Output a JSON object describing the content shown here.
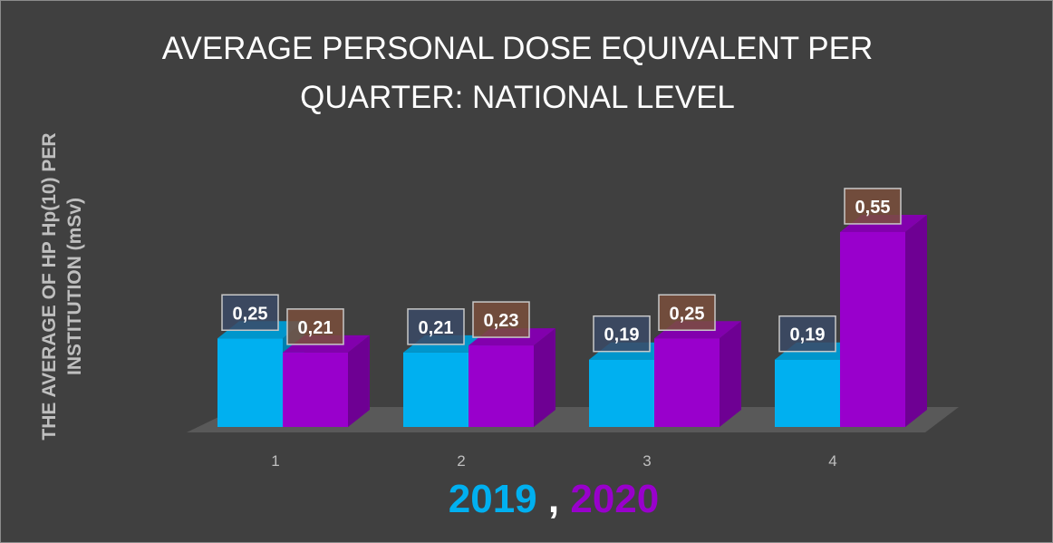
{
  "chart_data": {
    "type": "bar",
    "title": "AVERAGE PERSONAL DOSE EQUIVALENT PER QUARTER: NATIONAL LEVEL",
    "title_lines": [
      "AVERAGE PERSONAL DOSE EQUIVALENT PER",
      "QUARTER: NATIONAL LEVEL"
    ],
    "ylabel_lines": [
      "THE AVERAGE OF HP Hp(10) PER",
      "INSTITUTION (mSv)"
    ],
    "xlabel": "",
    "categories": [
      "1",
      "2",
      "3",
      "4"
    ],
    "series": [
      {
        "name": "2019",
        "values": [
          0.25,
          0.21,
          0.19,
          0.19
        ],
        "labels": [
          "0,25",
          "0,21",
          "0,19",
          "0,19"
        ],
        "color": "#00b0f0",
        "label_bg": "#3b4a66"
      },
      {
        "name": "2020",
        "values": [
          0.21,
          0.23,
          0.25,
          0.55
        ],
        "labels": [
          "0,21",
          "0,23",
          "0,25",
          "0,55"
        ],
        "color": "#9900cc",
        "label_bg": "#7a4f3c"
      }
    ],
    "legend": {
      "separator": " , ",
      "placement": "bottom"
    },
    "style": "3d-column",
    "grid": false,
    "ylim": [
      0,
      0.6
    ],
    "background": "#404040"
  }
}
